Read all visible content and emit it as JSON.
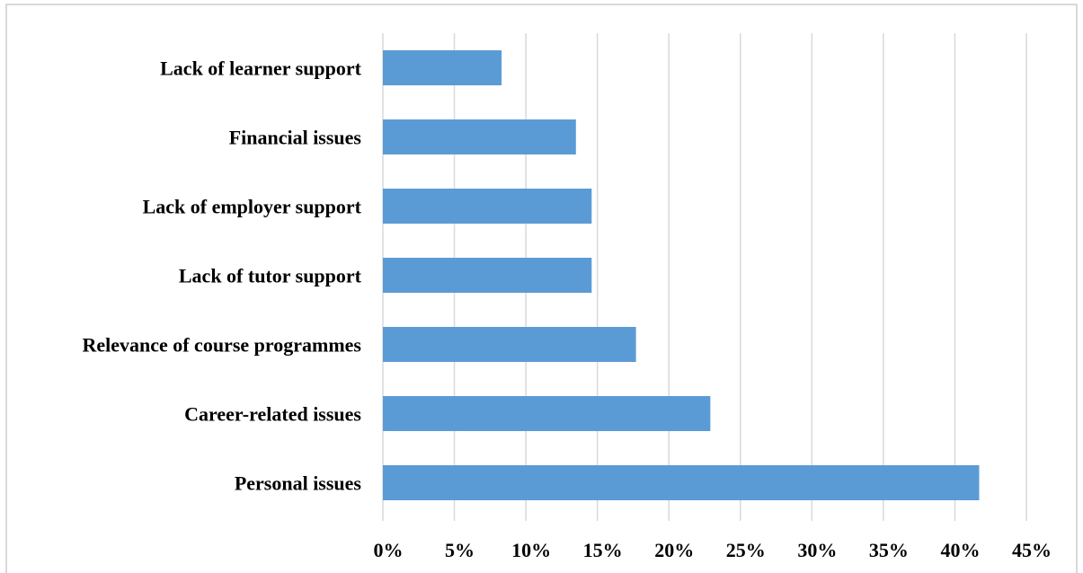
{
  "chart_data": {
    "type": "bar",
    "orientation": "horizontal",
    "categories": [
      "Lack of learner support",
      "Financial issues",
      "Lack of employer support",
      "Lack of tutor support",
      "Relevance of course programmes",
      "Career-related issues",
      "Personal issues"
    ],
    "values": [
      8.3,
      13.5,
      14.6,
      14.6,
      17.7,
      22.9,
      41.7
    ],
    "x_ticks": [
      "0%",
      "5%",
      "10%",
      "15%",
      "20%",
      "25%",
      "30%",
      "35%",
      "40%",
      "45%"
    ],
    "xlim": [
      0,
      45
    ],
    "grid": "vertical",
    "bar_color": "#5b9bd5",
    "title": "",
    "xlabel": "",
    "ylabel": ""
  }
}
